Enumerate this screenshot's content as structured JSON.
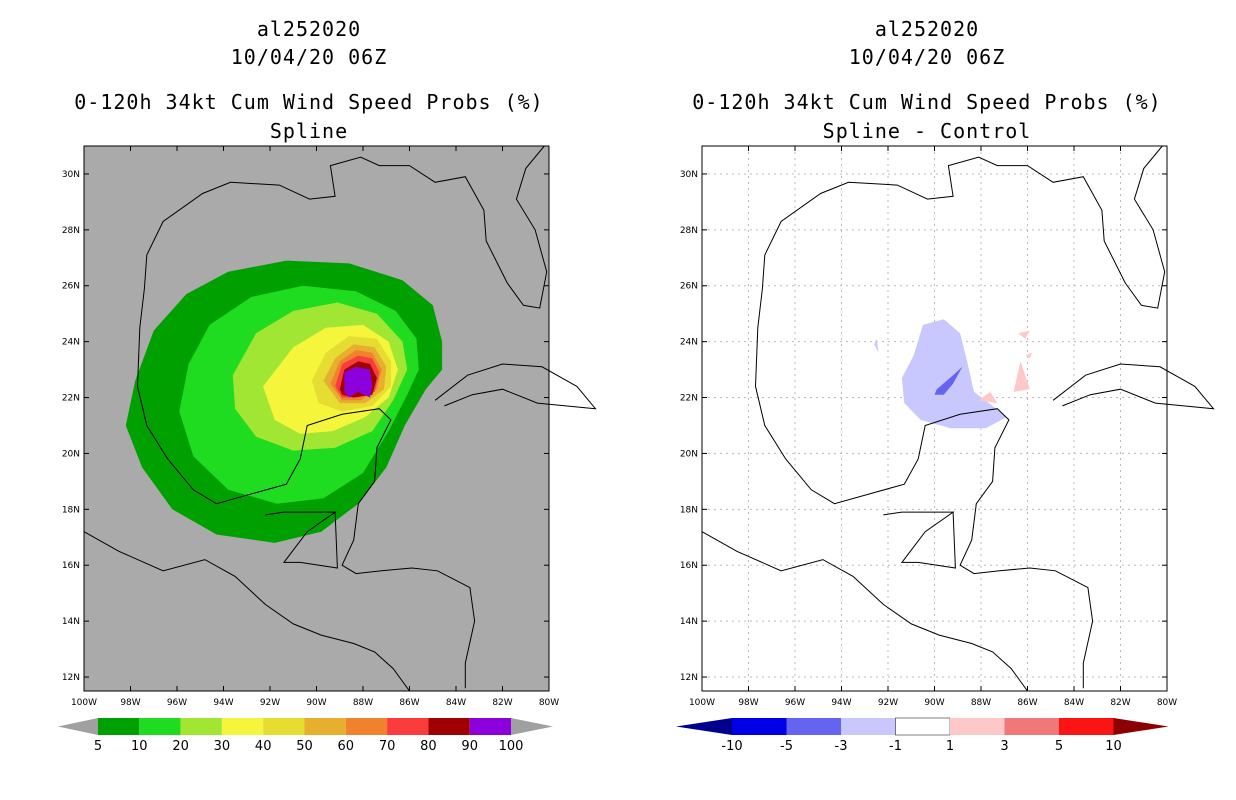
{
  "panels": [
    {
      "id": "left",
      "title_line1": "al252020",
      "title_line2": "10/04/20 06Z",
      "title_line3": "0-120h 34kt Cum Wind Speed Probs (%)",
      "title_line4": "Spline"
    },
    {
      "id": "right",
      "title_line1": "al252020",
      "title_line2": "10/04/20 06Z",
      "title_line3": "0-120h 34kt Cum Wind Speed Probs (%)",
      "title_line4": "Spline - Control"
    }
  ],
  "chart_data": [
    {
      "type": "heatmap",
      "title": "0-120h 34kt Cum Wind Speed Probs (%)",
      "subtitle": "Spline",
      "storm": "al252020",
      "datetime": "10/04/20 06Z",
      "lon_range": [
        -100,
        -80
      ],
      "lat_range": [
        11.5,
        31
      ],
      "x_ticks": [
        "100W",
        "98W",
        "96W",
        "94W",
        "92W",
        "90W",
        "88W",
        "86W",
        "84W",
        "82W",
        "80W"
      ],
      "y_ticks": [
        "12N",
        "14N",
        "16N",
        "18N",
        "20N",
        "22N",
        "24N",
        "26N",
        "28N",
        "30N"
      ],
      "grid": false,
      "background_color": "#aaaaaa",
      "colorbar": {
        "levels": [
          "5",
          "10",
          "20",
          "30",
          "40",
          "50",
          "60",
          "70",
          "80",
          "90",
          "100"
        ],
        "colors": [
          "#00a000",
          "#20dc20",
          "#a0e632",
          "#f5f53c",
          "#e6dc32",
          "#e6af2d",
          "#f0822d",
          "#fa3c3c",
          "#a00000",
          "#8c00dc"
        ],
        "end_color": "#a0a0a0"
      },
      "probability_max_center": {
        "lon": -88.3,
        "lat": 22.5,
        "value": 100
      }
    },
    {
      "type": "heatmap",
      "title": "0-120h 34kt Cum Wind Speed Probs (%)",
      "subtitle": "Spline - Control",
      "storm": "al252020",
      "datetime": "10/04/20 06Z",
      "lon_range": [
        -100,
        -80
      ],
      "lat_range": [
        11.5,
        31
      ],
      "x_ticks": [
        "100W",
        "98W",
        "96W",
        "94W",
        "92W",
        "90W",
        "88W",
        "86W",
        "84W",
        "82W",
        "80W"
      ],
      "y_ticks": [
        "12N",
        "14N",
        "16N",
        "18N",
        "20N",
        "22N",
        "24N",
        "26N",
        "28N",
        "30N"
      ],
      "grid": true,
      "background_color": "#ffffff",
      "colorbar": {
        "levels": [
          "-10",
          "-5",
          "-3",
          "-1",
          "1",
          "3",
          "5",
          "10"
        ],
        "colors": [
          "#0000e6",
          "#6464f0",
          "#c8c8ff",
          "#ffffff",
          "#ffc8c8",
          "#f07878",
          "#fa1414"
        ],
        "end_low_color": "#00008c",
        "end_high_color": "#8c0000"
      }
    }
  ]
}
